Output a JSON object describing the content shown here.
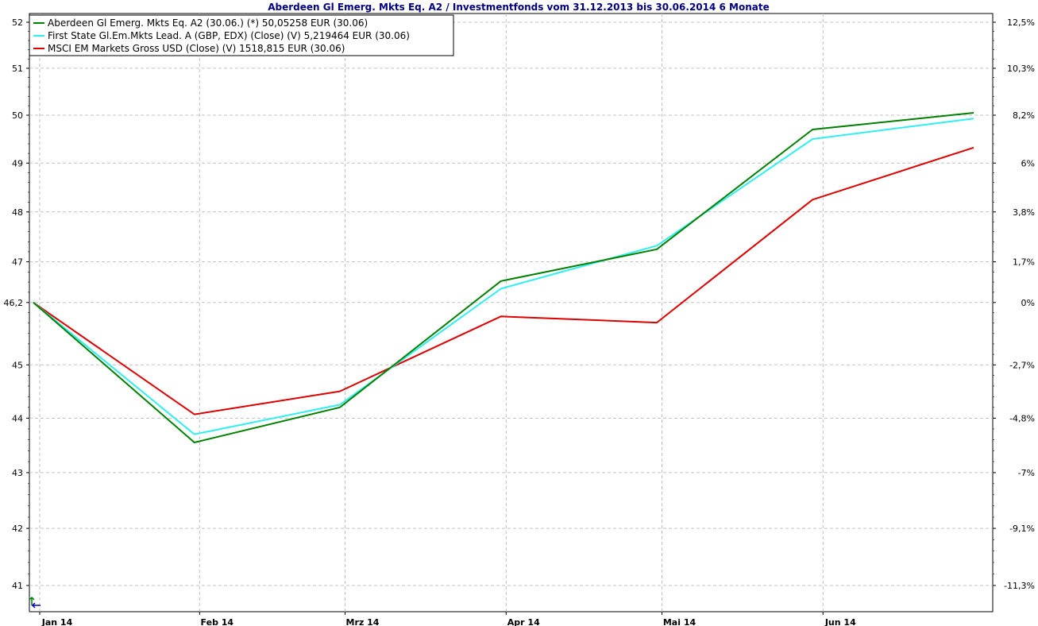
{
  "chart_data": {
    "type": "line",
    "title": "Aberdeen Gl Emerg. Mkts Eq. A2 / Investmentfonds vom 31.12.2013 bis 30.06.2014 6 Monate",
    "x": [
      "31.12.2013",
      "31.01.2014",
      "28.02.2014",
      "31.03.2014",
      "30.04.2014",
      "30.05.2014",
      "30.06.2014"
    ],
    "x_ticks": [
      "Jan 14",
      "Feb 14",
      "Mrz 14",
      "Apr 14",
      "Mai 14",
      "Jun 14"
    ],
    "y_left": {
      "ticks": [
        41,
        42,
        43,
        44,
        45,
        46.2,
        47,
        48,
        49,
        50,
        51,
        52
      ],
      "tick_labels": [
        "41",
        "42",
        "43",
        "44",
        "45",
        "46,2",
        "47",
        "48",
        "49",
        "50",
        "51",
        "52"
      ],
      "scale": "log",
      "ylim": [
        40.78,
        52.1
      ]
    },
    "y_right": {
      "tick_labels": [
        "-11,3%",
        "-9,1%",
        "-7%",
        "-4,8%",
        "-2,7%",
        "0%",
        "1,7%",
        "3,8%",
        "6%",
        "8,2%",
        "10,3%",
        "12,5%"
      ]
    },
    "grid": true,
    "legend_position": "top-left",
    "series": [
      {
        "name": "Aberdeen Gl Emerg. Mkts Eq. A2 (30.06.) (*) 50,05258 EUR (30.06)",
        "color": "#008000",
        "values": [
          46.2,
          43.55,
          44.2,
          46.62,
          47.25,
          49.7,
          50.05
        ]
      },
      {
        "name": "First State Gl.Em.Mkts Lead. A (GBP, EDX) (Close) (V) 5,219464 EUR (30.06)",
        "color": "#33eeee",
        "values": [
          46.2,
          43.7,
          44.25,
          46.47,
          47.32,
          49.5,
          49.93
        ]
      },
      {
        "name": "MSCI EM Markets Gross USD (Close) (V) 1518,815 EUR (30.06)",
        "color": "#dd0000",
        "values": [
          46.2,
          44.07,
          44.5,
          45.93,
          45.81,
          48.25,
          49.32
        ]
      }
    ]
  }
}
